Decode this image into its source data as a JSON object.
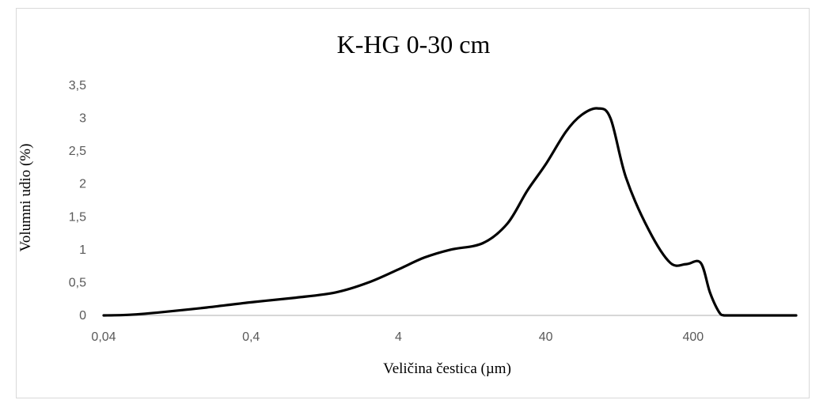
{
  "chart_data": {
    "type": "line",
    "title": "K-HG 0-30 cm",
    "xlabel": "Veličina čestica (µm)",
    "ylabel": "Volumni udio (%)",
    "x_scale": "log",
    "x_range": [
      0.04,
      2000
    ],
    "x_ticks": [
      {
        "value": 0.04,
        "label": "0,04"
      },
      {
        "value": 0.4,
        "label": "0,4"
      },
      {
        "value": 4,
        "label": "4"
      },
      {
        "value": 40,
        "label": "40"
      },
      {
        "value": 400,
        "label": "400"
      }
    ],
    "ylim": [
      0,
      3.5
    ],
    "y_ticks": [
      {
        "value": 0,
        "label": "0"
      },
      {
        "value": 0.5,
        "label": "0,5"
      },
      {
        "value": 1,
        "label": "1"
      },
      {
        "value": 1.5,
        "label": "1,5"
      },
      {
        "value": 2,
        "label": "2"
      },
      {
        "value": 2.5,
        "label": "2,5"
      },
      {
        "value": 3,
        "label": "3"
      },
      {
        "value": 3.5,
        "label": "3,5"
      }
    ],
    "grid": false,
    "series": [
      {
        "color": "#000000",
        "x": [
          0.04,
          0.06,
          0.1,
          0.2,
          0.4,
          0.8,
          1.5,
          2.5,
          4,
          6,
          9,
          15,
          22,
          30,
          40,
          55,
          70,
          90,
          110,
          140,
          200,
          280,
          360,
          450,
          520,
          600,
          650,
          800,
          1200,
          2000
        ],
        "y": [
          0,
          0.01,
          0.05,
          0.12,
          0.2,
          0.27,
          0.35,
          0.5,
          0.7,
          0.88,
          1.0,
          1.1,
          1.4,
          1.9,
          2.3,
          2.8,
          3.05,
          3.15,
          3.0,
          2.1,
          1.3,
          0.8,
          0.78,
          0.8,
          0.35,
          0.05,
          0,
          0,
          0,
          0
        ]
      }
    ]
  }
}
